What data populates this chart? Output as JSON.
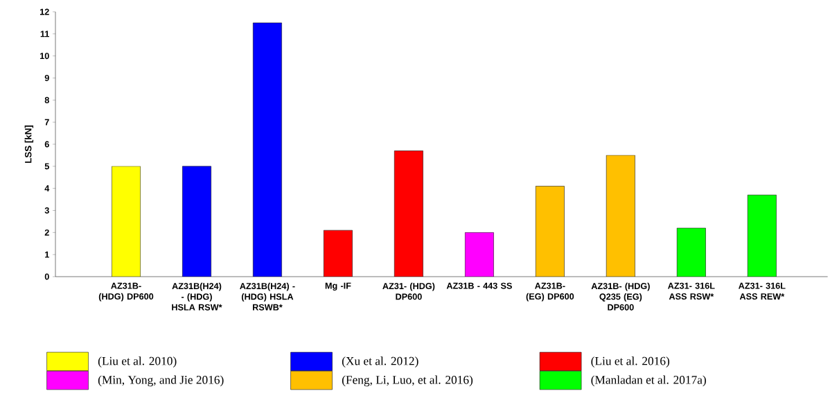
{
  "chart_data": {
    "type": "bar",
    "ylabel": "LSS [kN]",
    "categories": [
      "AZ31B- (HDG) DP600",
      "AZ31B(H24) - (HDG) HSLA RSW*",
      "AZ31B(H24) - (HDG) HSLA RSWB*",
      "Mg -IF",
      "AZ31- (HDG) DP600",
      "AZ31B - 443 SS",
      "AZ31B- (EG) DP600",
      "AZ31B- (HDG) Q235 (EG) DP600",
      "AZ31- 316L ASS RSW*",
      "AZ31- 316L ASS REW*"
    ],
    "series": [
      {
        "name": "(Liu et al. 2010)",
        "color": "#ffff00",
        "values": [
          5.0,
          null,
          null,
          null,
          null,
          null,
          null,
          null,
          null,
          null
        ]
      },
      {
        "name": "(Xu et al. 2012)",
        "color": "#0000ff",
        "values": [
          null,
          5.0,
          11.5,
          null,
          null,
          null,
          null,
          null,
          null,
          null
        ]
      },
      {
        "name": "(Liu et al. 2016)",
        "color": "#ff0000",
        "values": [
          null,
          null,
          null,
          2.1,
          5.7,
          null,
          null,
          null,
          null,
          null
        ]
      },
      {
        "name": "(Min, Yong, and Jie 2016)",
        "color": "#ff00ff",
        "values": [
          null,
          null,
          null,
          null,
          null,
          2.0,
          null,
          null,
          null,
          null
        ]
      },
      {
        "name": "(Feng, Li, Luo, et al. 2016)",
        "color": "#ffc000",
        "values": [
          null,
          null,
          null,
          null,
          null,
          null,
          4.1,
          5.5,
          null,
          null
        ]
      },
      {
        "name": "(Manladan et al. 2017a)",
        "color": "#00ff00",
        "values": [
          null,
          null,
          null,
          null,
          null,
          null,
          null,
          null,
          2.2,
          3.7
        ]
      }
    ],
    "ylim": [
      0,
      12
    ],
    "yticks": [
      0,
      1,
      2,
      3,
      4,
      5,
      6,
      7,
      8,
      9,
      10,
      11,
      12
    ],
    "legend": "bottom"
  }
}
